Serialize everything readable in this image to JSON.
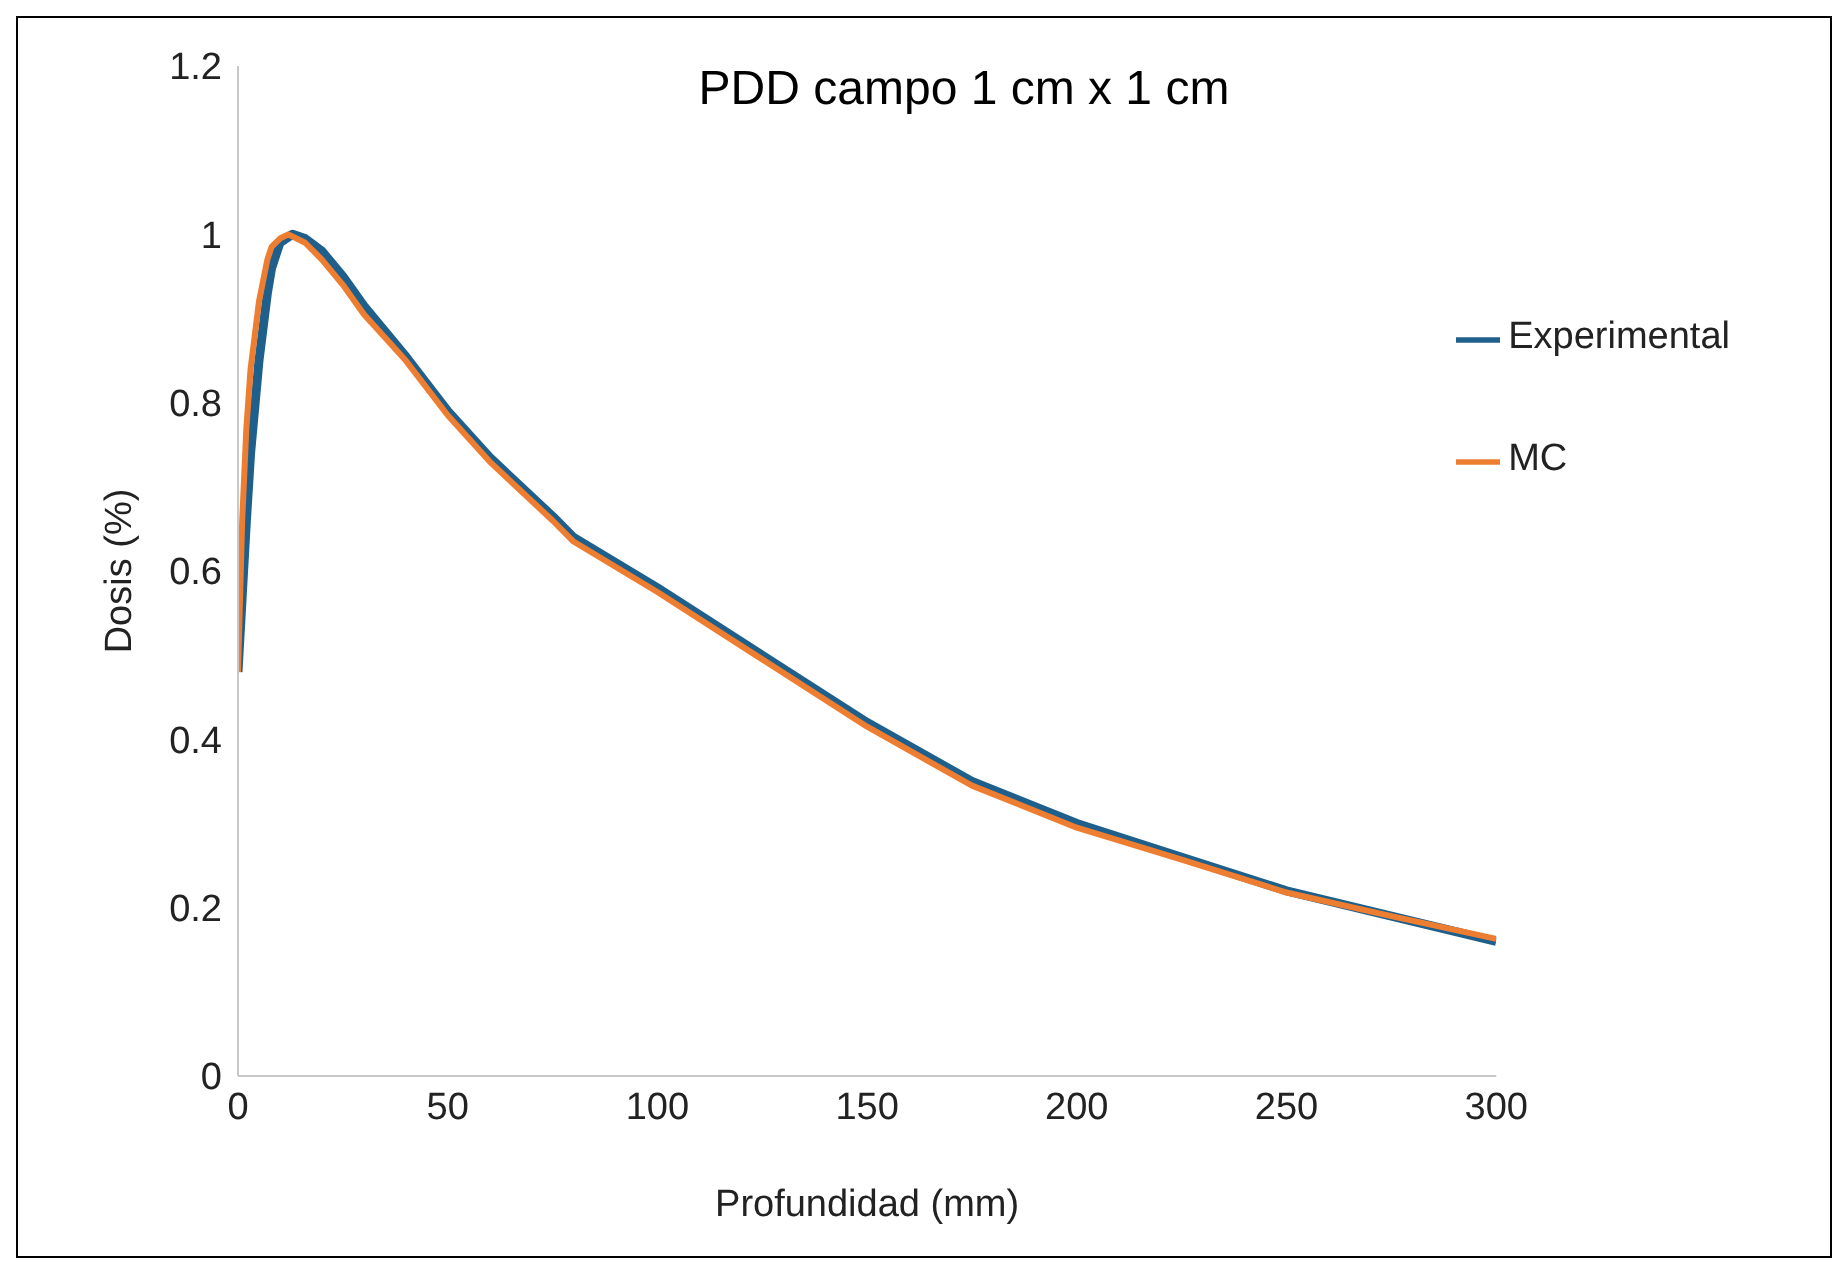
{
  "chart_data": {
    "type": "line",
    "title": "PDD campo 1 cm x 1 cm",
    "xlabel": "Profundidad  (mm)",
    "ylabel": "Dosis (%)",
    "xlim": [
      0,
      300
    ],
    "xticks": [
      0,
      50,
      100,
      150,
      200,
      250,
      300
    ],
    "ylim": [
      0,
      1.2
    ],
    "yticks": [
      0,
      0.2,
      0.4,
      0.6,
      0.8,
      1,
      1.2
    ],
    "grid": false,
    "legend": "right",
    "marker": "none",
    "line_style": "solid",
    "series": [
      {
        "name": "Experimental",
        "color": "#1f5f8b",
        "x": [
          0,
          1,
          2,
          3,
          5,
          7,
          8,
          10,
          13,
          16,
          20,
          25,
          30,
          40,
          50,
          60,
          75,
          80,
          90,
          100,
          125,
          150,
          175,
          200,
          225,
          250,
          275,
          300
        ],
        "values": [
          0.48,
          0.57,
          0.66,
          0.74,
          0.85,
          0.93,
          0.96,
          0.99,
          1.0,
          0.995,
          0.98,
          0.95,
          0.915,
          0.855,
          0.79,
          0.735,
          0.665,
          0.64,
          0.61,
          0.58,
          0.5,
          0.42,
          0.35,
          0.3,
          0.26,
          0.22,
          0.19,
          0.16
        ]
      },
      {
        "name": "MC",
        "color": "#ed7d31",
        "x": [
          0,
          1,
          2,
          3,
          5,
          7,
          8,
          10,
          12,
          16,
          20,
          25,
          30,
          40,
          50,
          60,
          75,
          80,
          90,
          100,
          125,
          150,
          175,
          200,
          225,
          250,
          275,
          300
        ],
        "values": [
          0.48,
          0.66,
          0.77,
          0.84,
          0.92,
          0.97,
          0.985,
          0.995,
          1.0,
          0.99,
          0.97,
          0.94,
          0.905,
          0.85,
          0.785,
          0.73,
          0.66,
          0.635,
          0.605,
          0.575,
          0.495,
          0.415,
          0.345,
          0.295,
          0.257,
          0.218,
          0.19,
          0.163
        ]
      }
    ]
  }
}
